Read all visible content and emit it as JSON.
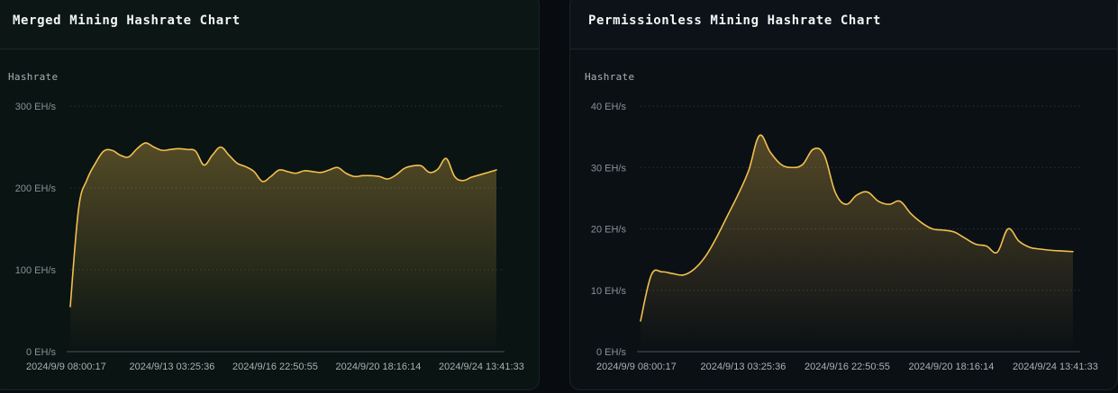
{
  "charts": [
    {
      "id": "left",
      "title": "Merged Mining Hashrate Chart",
      "chart_data": {
        "type": "area",
        "title": "Merged Mining Hashrate Chart",
        "ylabel": "Hashrate",
        "xlabel": "",
        "ylim": [
          0,
          300
        ],
        "yticks": [
          0,
          100,
          200,
          300
        ],
        "ytick_labels": [
          "0 EH/s",
          "100 EH/s",
          "200 EH/s",
          "300 EH/s"
        ],
        "xtick_labels": [
          "2024/9/9 08:00:17",
          "2024/9/13 03:25:36",
          "2024/9/16 22:50:55",
          "2024/9/20 18:16:14",
          "2024/9/24 13:41:33"
        ],
        "grid": true,
        "legend": "none",
        "line_color": "#f2c04e",
        "unit": "EH/s",
        "values": [
          55,
          175,
          210,
          230,
          245,
          246,
          240,
          238,
          248,
          255,
          250,
          246,
          247,
          248,
          247,
          245,
          228,
          240,
          250,
          240,
          230,
          226,
          220,
          208,
          214,
          222,
          220,
          218,
          221,
          220,
          219,
          222,
          225,
          218,
          214,
          215,
          215,
          214,
          211,
          216,
          224,
          227,
          227,
          219,
          223,
          236,
          214,
          209,
          213,
          216,
          219,
          222
        ]
      }
    },
    {
      "id": "right",
      "title": "Permissionless Mining Hashrate Chart",
      "chart_data": {
        "type": "area",
        "title": "Permissionless Mining Hashrate Chart",
        "ylabel": "Hashrate",
        "xlabel": "",
        "ylim": [
          0,
          40
        ],
        "yticks": [
          0,
          10,
          20,
          30,
          40
        ],
        "ytick_labels": [
          "0 EH/s",
          "10 EH/s",
          "20 EH/s",
          "30 EH/s",
          "40 EH/s"
        ],
        "xtick_labels": [
          "2024/9/9 08:00:17",
          "2024/9/13 03:25:36",
          "2024/9/16 22:50:55",
          "2024/9/20 18:16:14",
          "2024/9/24 13:41:33"
        ],
        "grid": true,
        "legend": "none",
        "line_color": "#f2c04e",
        "unit": "EH/s",
        "values": [
          5,
          12.5,
          13,
          12.7,
          12.5,
          13.5,
          15.5,
          18.5,
          22,
          25.5,
          29.5,
          35.2,
          32.5,
          30.5,
          30,
          30.5,
          33,
          32,
          26,
          24,
          25.5,
          26,
          24.5,
          24,
          24.5,
          22.5,
          21,
          20,
          19.8,
          19.5,
          18.5,
          17.5,
          17.2,
          16.2,
          20,
          18,
          17,
          16.7,
          16.5,
          16.4,
          16.3
        ]
      }
    }
  ]
}
